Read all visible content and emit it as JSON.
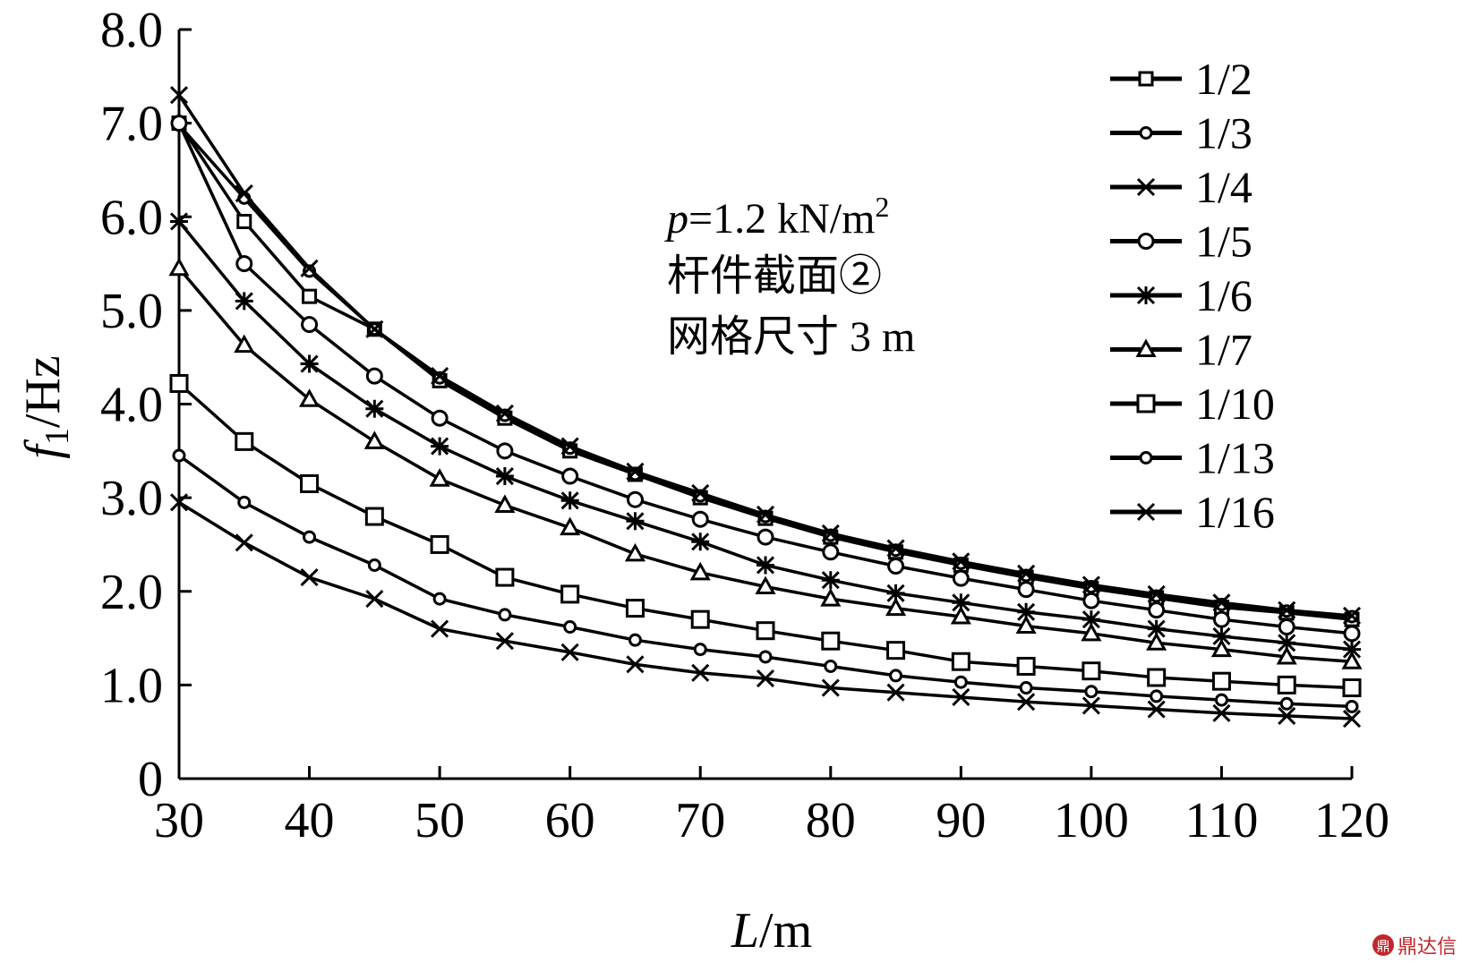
{
  "chart_data": {
    "type": "line",
    "xlabel_main": "L",
    "xlabel_unit": "/m",
    "ylabel_symbol": "f",
    "ylabel_sub": "1",
    "ylabel_unit": "/Hz",
    "x": [
      30,
      35,
      40,
      45,
      50,
      55,
      60,
      65,
      70,
      75,
      80,
      85,
      90,
      95,
      100,
      105,
      110,
      115,
      120
    ],
    "xlim": [
      30,
      120
    ],
    "ylim": [
      0,
      8
    ],
    "x_ticks": [
      "30",
      "40",
      "50",
      "60",
      "70",
      "80",
      "90",
      "100",
      "110",
      "120"
    ],
    "y_ticks": [
      "0",
      "1.0",
      "2.0",
      "3.0",
      "4.0",
      "5.0",
      "6.0",
      "7.0",
      "8.0"
    ],
    "grid": false,
    "legend_position": "top-right",
    "annotation": {
      "line1_italic": "p",
      "line1_rest": "=1.2 kN/m",
      "line1_sup": "2",
      "line2": "杆件截面②",
      "line3": "网格尺寸 3 m"
    },
    "series": [
      {
        "name": "1/2",
        "marker": "square-small",
        "values": [
          7.0,
          5.95,
          5.15,
          4.8,
          4.25,
          3.85,
          3.5,
          3.25,
          3.0,
          2.78,
          2.58,
          2.42,
          2.28,
          2.15,
          2.03,
          1.93,
          1.83,
          1.77,
          1.7
        ]
      },
      {
        "name": "1/3",
        "marker": "circle-small",
        "values": [
          6.98,
          6.2,
          5.42,
          4.8,
          4.28,
          3.88,
          3.53,
          3.25,
          3.02,
          2.8,
          2.6,
          2.44,
          2.3,
          2.17,
          2.05,
          1.95,
          1.86,
          1.79,
          1.73
        ]
      },
      {
        "name": "1/4",
        "marker": "x",
        "values": [
          7.3,
          6.25,
          5.45,
          4.8,
          4.3,
          3.9,
          3.55,
          3.28,
          3.05,
          2.82,
          2.62,
          2.46,
          2.32,
          2.19,
          2.07,
          1.97,
          1.88,
          1.8,
          1.74
        ]
      },
      {
        "name": "1/5",
        "marker": "circle",
        "values": [
          7.0,
          5.5,
          4.85,
          4.3,
          3.85,
          3.5,
          3.23,
          2.98,
          2.77,
          2.58,
          2.42,
          2.27,
          2.14,
          2.02,
          1.9,
          1.8,
          1.7,
          1.62,
          1.55
        ]
      },
      {
        "name": "1/6",
        "marker": "asterisk",
        "values": [
          5.95,
          5.1,
          4.43,
          3.95,
          3.55,
          3.23,
          2.97,
          2.75,
          2.53,
          2.28,
          2.12,
          1.98,
          1.88,
          1.78,
          1.7,
          1.6,
          1.52,
          1.45,
          1.38
        ]
      },
      {
        "name": "1/7",
        "marker": "triangle",
        "values": [
          5.45,
          4.63,
          4.05,
          3.6,
          3.2,
          2.92,
          2.68,
          2.4,
          2.2,
          2.05,
          1.92,
          1.82,
          1.73,
          1.63,
          1.55,
          1.45,
          1.38,
          1.3,
          1.25
        ]
      },
      {
        "name": "1/10",
        "marker": "square",
        "values": [
          4.22,
          3.6,
          3.15,
          2.8,
          2.5,
          2.15,
          1.97,
          1.82,
          1.7,
          1.58,
          1.47,
          1.37,
          1.25,
          1.2,
          1.15,
          1.08,
          1.04,
          1.0,
          0.97
        ]
      },
      {
        "name": "1/13",
        "marker": "circle-small",
        "values": [
          3.45,
          2.95,
          2.58,
          2.28,
          1.92,
          1.75,
          1.62,
          1.48,
          1.38,
          1.3,
          1.2,
          1.1,
          1.03,
          0.97,
          0.93,
          0.88,
          0.84,
          0.8,
          0.77
        ]
      },
      {
        "name": "1/16",
        "marker": "x",
        "values": [
          2.95,
          2.52,
          2.15,
          1.92,
          1.6,
          1.47,
          1.35,
          1.22,
          1.13,
          1.07,
          0.97,
          0.92,
          0.87,
          0.82,
          0.78,
          0.74,
          0.7,
          0.67,
          0.64
        ]
      }
    ]
  },
  "watermark": {
    "badge": "鼎",
    "text": "鼎达信"
  }
}
